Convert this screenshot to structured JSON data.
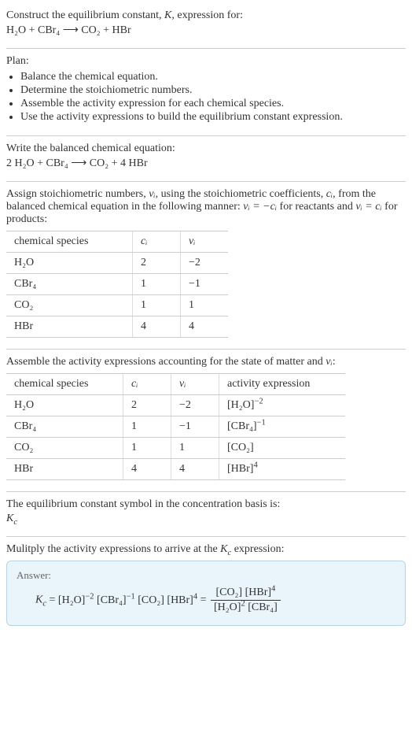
{
  "intro": {
    "line1_pre": "Construct the equilibrium constant, ",
    "line1_K": "K",
    "line1_post": ", expression for:",
    "equation": "H₂O + CBr₄  ⟶  CO₂ + HBr"
  },
  "plan": {
    "heading": "Plan:",
    "items": [
      "Balance the chemical equation.",
      "Determine the stoichiometric numbers.",
      "Assemble the activity expression for each chemical species.",
      "Use the activity expressions to build the equilibrium constant expression."
    ]
  },
  "balanced": {
    "heading": "Write the balanced chemical equation:",
    "equation": "2 H₂O + CBr₄  ⟶  CO₂ + 4 HBr"
  },
  "stoich": {
    "text_a": "Assign stoichiometric numbers, ",
    "nu_i": "νᵢ",
    "text_b": ", using the stoichiometric coefficients, ",
    "c_i": "cᵢ",
    "text_c": ", from the balanced chemical equation in the following manner: ",
    "rel1": "νᵢ = −cᵢ",
    "text_d": " for reactants and ",
    "rel2": "νᵢ = cᵢ",
    "text_e": " for products:",
    "table": {
      "headers": [
        "chemical species",
        "cᵢ",
        "νᵢ"
      ],
      "rows": [
        [
          "H₂O",
          "2",
          "−2"
        ],
        [
          "CBr₄",
          "1",
          "−1"
        ],
        [
          "CO₂",
          "1",
          "1"
        ],
        [
          "HBr",
          "4",
          "4"
        ]
      ],
      "col_widths": [
        "140px",
        "40px",
        "40px"
      ]
    }
  },
  "activity": {
    "heading_a": "Assemble the activity expressions accounting for the state of matter and ",
    "nu_i": "νᵢ",
    "heading_b": ":",
    "table": {
      "headers": [
        "chemical species",
        "cᵢ",
        "νᵢ",
        "activity expression"
      ],
      "rows": [
        {
          "species": "H₂O",
          "c": "2",
          "nu": "−2",
          "act_base": "[H₂O]",
          "act_exp": "−2"
        },
        {
          "species": "CBr₄",
          "c": "1",
          "nu": "−1",
          "act_base": "[CBr₄]",
          "act_exp": "−1"
        },
        {
          "species": "CO₂",
          "c": "1",
          "nu": "1",
          "act_base": "[CO₂]",
          "act_exp": ""
        },
        {
          "species": "HBr",
          "c": "4",
          "nu": "4",
          "act_base": "[HBr]",
          "act_exp": "4"
        }
      ],
      "col_widths": [
        "128px",
        "40px",
        "40px",
        "140px"
      ]
    }
  },
  "kcsymbol": {
    "line1": "The equilibrium constant symbol in the concentration basis is:",
    "symbol": "K_c"
  },
  "final": {
    "heading_a": "Mulitply the activity expressions to arrive at the ",
    "kc": "K_c",
    "heading_b": " expression:",
    "answer_label": "Answer:",
    "lhs_k": "K_c",
    "terms": [
      {
        "base": "[H₂O]",
        "exp": "−2"
      },
      {
        "base": "[CBr₄]",
        "exp": "−1"
      },
      {
        "base": "[CO₂]",
        "exp": ""
      },
      {
        "base": "[HBr]",
        "exp": "4"
      }
    ],
    "frac_num": [
      {
        "base": "[CO₂]",
        "exp": ""
      },
      {
        "base": "[HBr]",
        "exp": "4"
      }
    ],
    "frac_den": [
      {
        "base": "[H₂O]",
        "exp": "2"
      },
      {
        "base": "[CBr₄]",
        "exp": ""
      }
    ]
  },
  "colors": {
    "divider": "#cccccc",
    "answer_bg": "#eaf4fb",
    "answer_border": "#b8d4e3"
  }
}
